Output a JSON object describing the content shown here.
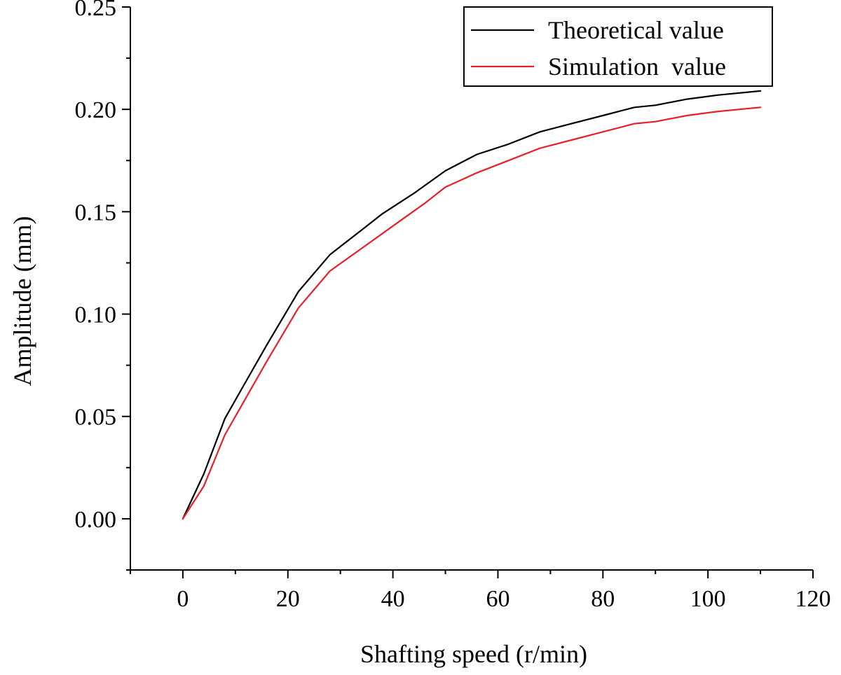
{
  "chart_data": {
    "type": "line",
    "title": "",
    "xlabel": "Shafting speed (r/min)",
    "ylabel": "Amplitude (mm)",
    "xlim": [
      -10,
      120
    ],
    "ylim": [
      -0.025,
      0.25
    ],
    "xticks": [
      0,
      20,
      40,
      60,
      80,
      100,
      120
    ],
    "xtick_labels": [
      "0",
      "20",
      "40",
      "60",
      "80",
      "100",
      "120"
    ],
    "yticks": [
      0.0,
      0.05,
      0.1,
      0.15,
      0.2,
      0.25
    ],
    "ytick_labels": [
      "0.00",
      "0.05",
      "0.10",
      "0.15",
      "0.20",
      "0.25"
    ],
    "grid": false,
    "legend_position": "top-right",
    "series": [
      {
        "name": "Theoretical value",
        "color": "#000000",
        "x": [
          0,
          4,
          8,
          12,
          16,
          22,
          28,
          34,
          38,
          44,
          50,
          56,
          62,
          68,
          74,
          80,
          86,
          90,
          96,
          102,
          110
        ],
        "y": [
          0.0,
          0.022,
          0.049,
          0.067,
          0.085,
          0.111,
          0.129,
          0.141,
          0.149,
          0.159,
          0.17,
          0.178,
          0.183,
          0.189,
          0.193,
          0.197,
          0.201,
          0.202,
          0.205,
          0.207,
          0.209
        ]
      },
      {
        "name": "Simulation  value",
        "color": "#e8202a",
        "x": [
          0,
          4,
          8,
          12,
          16,
          22,
          28,
          34,
          40,
          46,
          50,
          56,
          62,
          68,
          74,
          80,
          86,
          90,
          96,
          102,
          110
        ],
        "y": [
          0.0,
          0.016,
          0.041,
          0.059,
          0.077,
          0.103,
          0.121,
          0.132,
          0.143,
          0.154,
          0.162,
          0.169,
          0.175,
          0.181,
          0.185,
          0.189,
          0.193,
          0.194,
          0.197,
          0.199,
          0.201
        ]
      }
    ]
  }
}
